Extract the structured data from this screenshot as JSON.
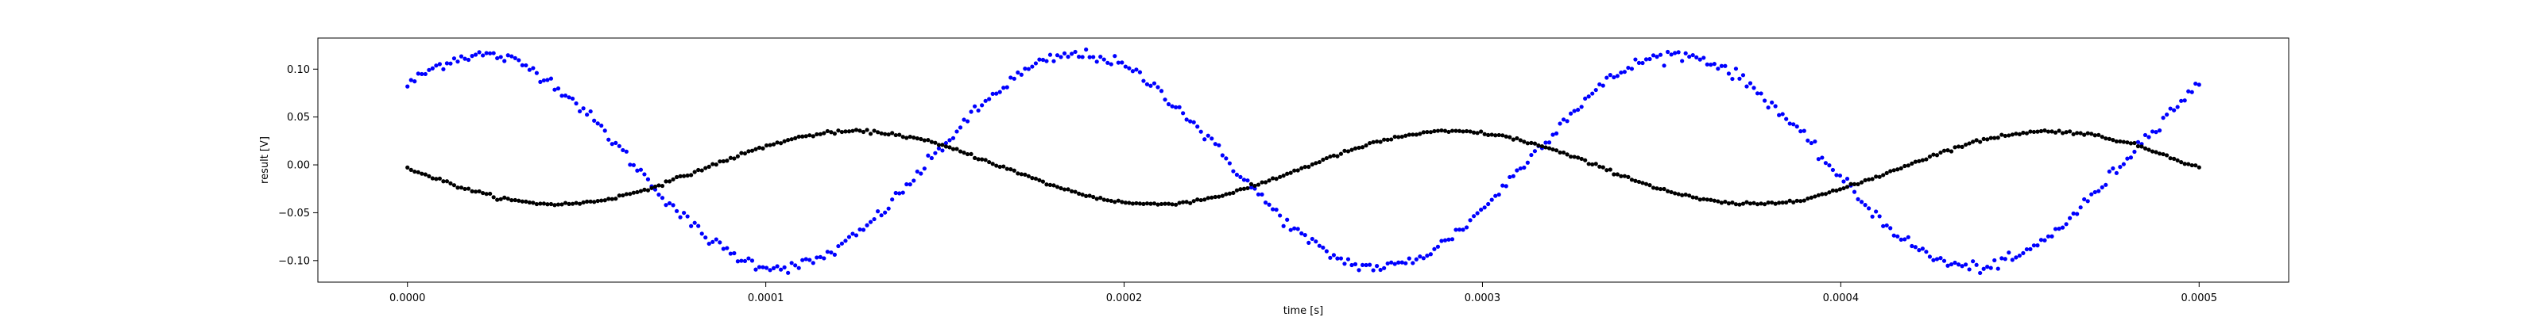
{
  "chart_data": {
    "type": "scatter",
    "title": "",
    "xlabel": "time [s]",
    "ylabel": "result [V]",
    "xlim": [
      -2.5e-05,
      0.000525
    ],
    "ylim": [
      -0.1225,
      0.1325
    ],
    "grid": false,
    "legend": "none",
    "x_ticks": [
      0.0,
      0.0001,
      0.0002,
      0.0003,
      0.0004,
      0.0005
    ],
    "x_tick_labels": [
      "0.0000",
      "0.0001",
      "0.0002",
      "0.0003",
      "0.0004",
      "0.0005"
    ],
    "y_ticks": [
      -0.1,
      -0.05,
      0.0,
      0.05,
      0.1
    ],
    "y_tick_labels": [
      "−0.10",
      "−0.05",
      "0.00",
      "0.05",
      "0.10"
    ],
    "series": [
      {
        "color": "#0000ff",
        "x_start": 0.0,
        "x_end": 0.0005,
        "n_points": 500,
        "model": "sine",
        "amplitude": 0.111,
        "frequency_hz": 6000,
        "phase_rad": 0.79,
        "offset": 0.004,
        "noise": 0.003
      },
      {
        "color": "#000000",
        "x_start": 0.0,
        "x_end": 0.0005,
        "n_points": 500,
        "model": "sine",
        "amplitude": 0.038,
        "frequency_hz": 6000,
        "phase_rad": 3.14159,
        "offset": -0.003,
        "noise": 0.0008
      }
    ]
  }
}
